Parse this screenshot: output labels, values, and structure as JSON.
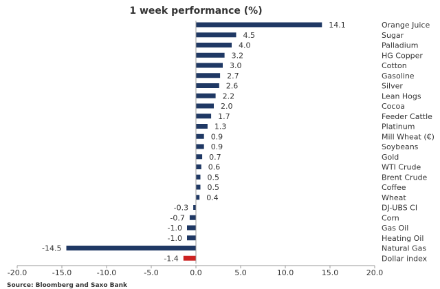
{
  "chart_data": {
    "type": "bar",
    "orientation": "horizontal",
    "title": "1 week performance (%)",
    "categories": [
      "Orange Juice",
      "Sugar",
      "Palladium",
      "HG Copper",
      "Cotton",
      "Gasoline",
      "Silver",
      "Lean Hogs",
      "Cocoa",
      "Feeder Cattle",
      "Platinum",
      "Mill Wheat (€)",
      "Soybeans",
      "Gold",
      "WTI Crude",
      "Brent Crude",
      "Coffee",
      "Wheat",
      "DJ-UBS CI",
      "Corn",
      "Gas Oil",
      "Heating Oil",
      "Natural Gas",
      "Dollar index"
    ],
    "values": [
      14.1,
      4.5,
      4.0,
      3.2,
      3.0,
      2.7,
      2.6,
      2.2,
      2.0,
      1.7,
      1.3,
      0.9,
      0.9,
      0.7,
      0.6,
      0.5,
      0.5,
      0.4,
      -0.3,
      -0.7,
      -1.0,
      -1.0,
      -14.5,
      -1.4
    ],
    "value_labels": [
      "14.1",
      "4.5",
      "4.0",
      "3.2",
      "3.0",
      "2.7",
      "2.6",
      "2.2",
      "2.0",
      "1.7",
      "1.3",
      "0.9",
      "0.9",
      "0.7",
      "0.6",
      "0.5",
      "0.5",
      "0.4",
      "-0.3",
      "-0.7",
      "-1.0",
      "-1.0",
      "-14.5",
      "-1.4"
    ],
    "xlim": [
      -20,
      20
    ],
    "x_ticks": [
      -20,
      -15,
      -10,
      -5,
      0,
      5,
      10,
      15,
      20
    ],
    "x_tick_labels": [
      "-20.0",
      "-15.0",
      "-10.0",
      "-5.0",
      "0.0",
      "5.0",
      "10.0",
      "15.0",
      "20.0"
    ],
    "grid": false,
    "bar_color": "#1f3864",
    "highlight_color": "#cc2222",
    "highlight_category": "Dollar index",
    "source": "Source: Bloomberg and Saxo Bank"
  }
}
